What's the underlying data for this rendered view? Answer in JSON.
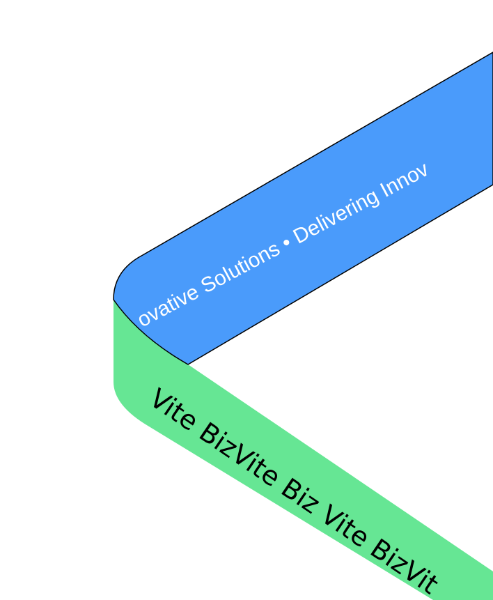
{
  "ribbons": {
    "top": {
      "text": "ovative Solutions • Delivering Innov"
    },
    "bottom": {
      "text": "Vite BizVite Biz Vite BizVit"
    }
  }
}
